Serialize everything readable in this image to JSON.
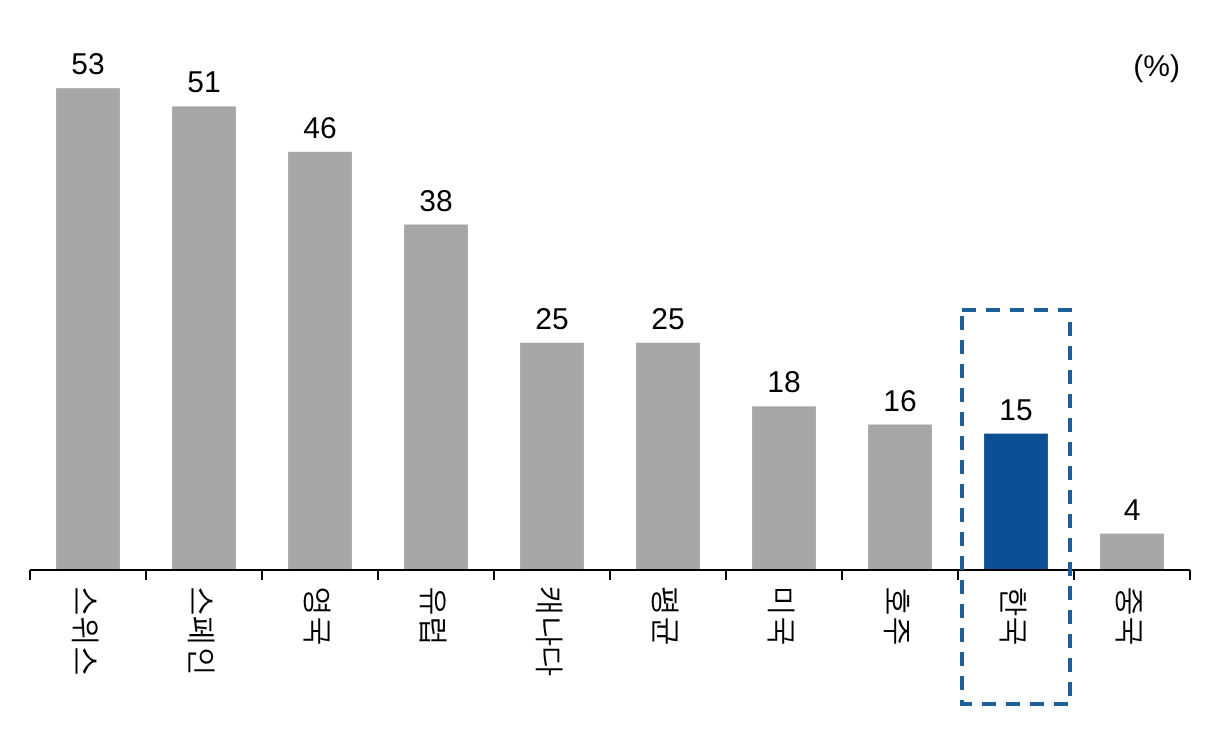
{
  "chart_data": {
    "type": "bar",
    "categories": [
      "스위스",
      "스페인",
      "영국",
      "유럽",
      "캐나다",
      "평균",
      "미국",
      "호주",
      "한국",
      "중국"
    ],
    "values": [
      53,
      51,
      46,
      38,
      25,
      25,
      18,
      16,
      15,
      4
    ],
    "colors": [
      "#a6a6a6",
      "#a6a6a6",
      "#a6a6a6",
      "#a6a6a6",
      "#a6a6a6",
      "#a6a6a6",
      "#a6a6a6",
      "#a6a6a6",
      "#0b4f95",
      "#a6a6a6"
    ],
    "data_labels": true,
    "annotations": [
      "(%)"
    ]
  }
}
